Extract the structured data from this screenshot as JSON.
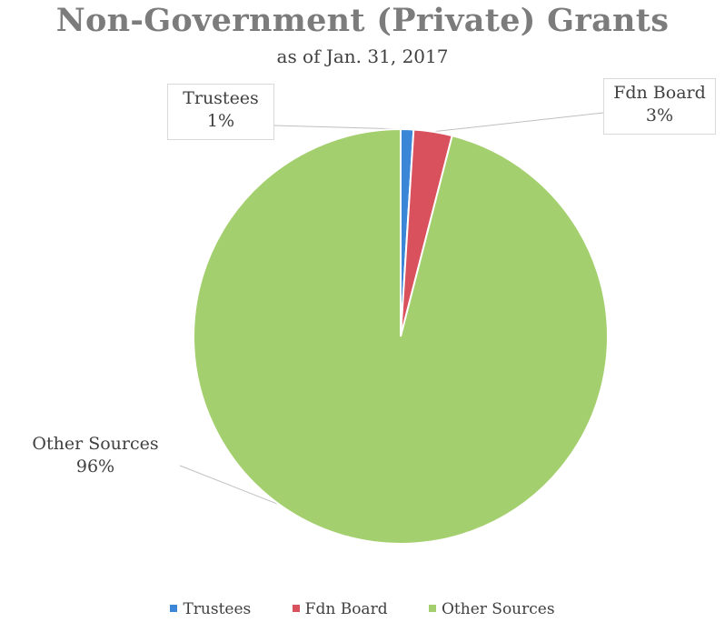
{
  "chart_data": {
    "type": "pie",
    "title": "Non-Government (Private) Grants",
    "subtitle": "as of Jan. 31, 2017",
    "categories": [
      "Trustees",
      "Fdn Board",
      "Other Sources"
    ],
    "values": [
      1,
      3,
      96
    ],
    "labels": [
      "1%",
      "3%",
      "96%"
    ],
    "colors": [
      "#3b86d6",
      "#d9515c",
      "#a4cf6e"
    ],
    "legend_position": "bottom"
  }
}
